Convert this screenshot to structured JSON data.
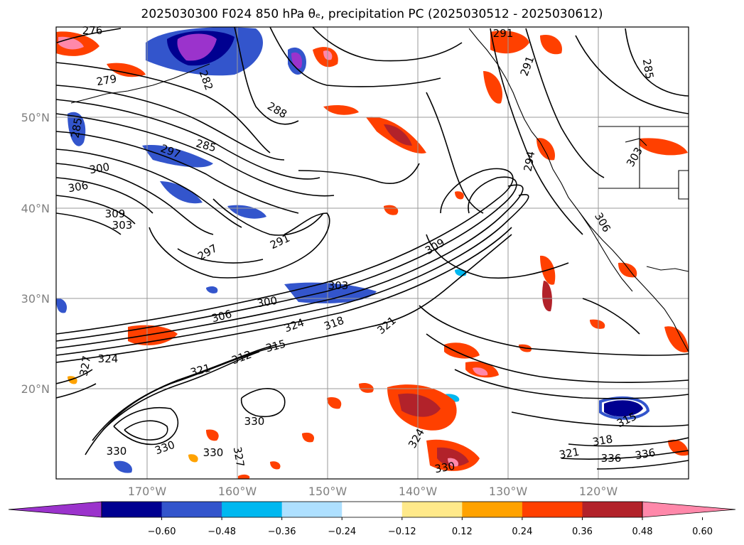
{
  "title": "2025030300 F024 850 hPa θₑ, precipitation PC (2025030512 - 2025030612)",
  "map": {
    "lat_labels": [
      "50°N",
      "40°N",
      "30°N",
      "20°N"
    ],
    "lon_labels": [
      "170°W",
      "160°W",
      "150°W",
      "140°W",
      "130°W",
      "120°W"
    ]
  },
  "colorbar": {
    "colors": [
      "#9b33cc",
      "#000090",
      "#3355cc",
      "#00b8f0",
      "#aee0ff",
      "#ffffff",
      "#ffe98a",
      "#ffa200",
      "#ff4000",
      "#b2222a",
      "#ff88aa"
    ],
    "tick_labels": [
      "−0.60",
      "−0.48",
      "−0.36",
      "−0.24",
      "−0.12",
      "0.12",
      "0.24",
      "0.36",
      "0.48",
      "0.60"
    ]
  },
  "contour_labels": [
    "279",
    "288",
    "285",
    "297",
    "300",
    "306",
    "309",
    "303",
    "291",
    "297",
    "285",
    "282",
    "294",
    "291",
    "285",
    "309",
    "303",
    "306",
    "300",
    "324",
    "318",
    "321",
    "315",
    "324",
    "327",
    "321",
    "312",
    "330",
    "327",
    "330",
    "336",
    "318",
    "315",
    "321",
    "330",
    "336",
    "330",
    "303",
    "306",
    "324",
    "330",
    "276",
    "291"
  ]
}
